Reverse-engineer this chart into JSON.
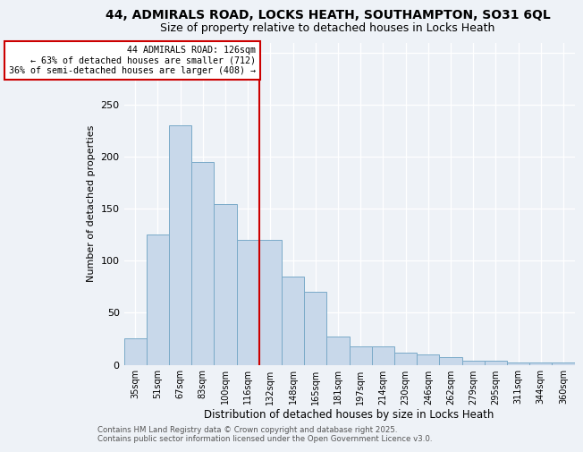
{
  "title": "44, ADMIRALS ROAD, LOCKS HEATH, SOUTHAMPTON, SO31 6QL",
  "subtitle": "Size of property relative to detached houses in Locks Heath",
  "xlabel": "Distribution of detached houses by size in Locks Heath",
  "ylabel": "Number of detached properties",
  "categories": [
    "35sqm",
    "51sqm",
    "67sqm",
    "83sqm",
    "100sqm",
    "116sqm",
    "132sqm",
    "148sqm",
    "165sqm",
    "181sqm",
    "197sqm",
    "214sqm",
    "230sqm",
    "246sqm",
    "262sqm",
    "279sqm",
    "295sqm",
    "311sqm",
    "344sqm",
    "360sqm"
  ],
  "values": [
    25,
    125,
    230,
    195,
    155,
    120,
    120,
    85,
    70,
    27,
    18,
    18,
    12,
    10,
    7,
    4,
    4,
    2,
    2,
    2
  ],
  "bar_color": "#c8d8ea",
  "bar_edge_color": "#7aaac8",
  "vline_x_index": 6,
  "vline_color": "#cc0000",
  "annotation_text": "44 ADMIRALS ROAD: 126sqm\n← 63% of detached houses are smaller (712)\n36% of semi-detached houses are larger (408) →",
  "annotation_box_color": "#ffffff",
  "annotation_box_edge": "#cc0000",
  "footer1": "Contains HM Land Registry data © Crown copyright and database right 2025.",
  "footer2": "Contains public sector information licensed under the Open Government Licence v3.0.",
  "title_fontsize": 10,
  "subtitle_fontsize": 9,
  "ylim": [
    0,
    310
  ],
  "yticks": [
    0,
    50,
    100,
    150,
    200,
    250,
    300
  ],
  "background_color": "#eef2f7"
}
